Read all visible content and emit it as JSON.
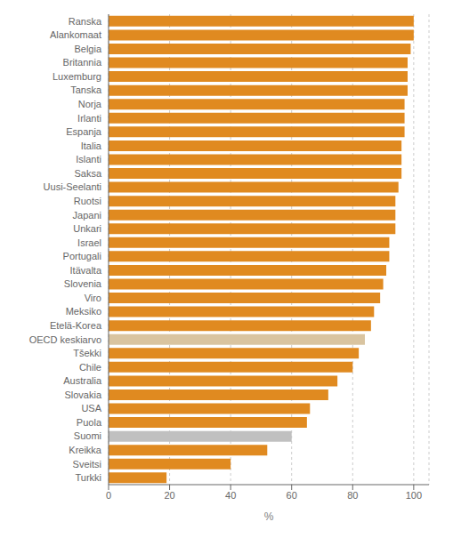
{
  "chart_data": {
    "type": "bar",
    "orientation": "horizontal",
    "categories": [
      "Ranska",
      "Alankomaat",
      "Belgia",
      "Britannia",
      "Luxemburg",
      "Tanska",
      "Norja",
      "Irlanti",
      "Espanja",
      "Italia",
      "Islanti",
      "Saksa",
      "Uusi-Seelanti",
      "Ruotsi",
      "Japani",
      "Unkari",
      "Israel",
      "Portugali",
      "Itävalta",
      "Slovenia",
      "Viro",
      "Meksiko",
      "Etelä-Korea",
      "OECD keskiarvo",
      "Tšekki",
      "Chile",
      "Australia",
      "Slovakia",
      "USA",
      "Puola",
      "Suomi",
      "Kreikka",
      "Sveitsi",
      "Turkki"
    ],
    "values": [
      100,
      100,
      99,
      98,
      98,
      98,
      97,
      97,
      97,
      96,
      96,
      96,
      95,
      94,
      94,
      94,
      92,
      92,
      91,
      90,
      89,
      87,
      86,
      84,
      82,
      80,
      75,
      72,
      66,
      65,
      60,
      52,
      40,
      19
    ],
    "colors": [
      "#E08A20",
      "#E08A20",
      "#E08A20",
      "#E08A20",
      "#E08A20",
      "#E08A20",
      "#E08A20",
      "#E08A20",
      "#E08A20",
      "#E08A20",
      "#E08A20",
      "#E08A20",
      "#E08A20",
      "#E08A20",
      "#E08A20",
      "#E08A20",
      "#E08A20",
      "#E08A20",
      "#E08A20",
      "#E08A20",
      "#E08A20",
      "#E08A20",
      "#E08A20",
      "#D9C4A0",
      "#E08A20",
      "#E08A20",
      "#E08A20",
      "#E08A20",
      "#E08A20",
      "#E08A20",
      "#C0C0C0",
      "#E08A20",
      "#E08A20",
      "#E08A20"
    ],
    "xlabel": "%",
    "xlim": [
      0,
      105
    ],
    "xticks": [
      0,
      20,
      40,
      60,
      80,
      100
    ],
    "grid": true
  }
}
